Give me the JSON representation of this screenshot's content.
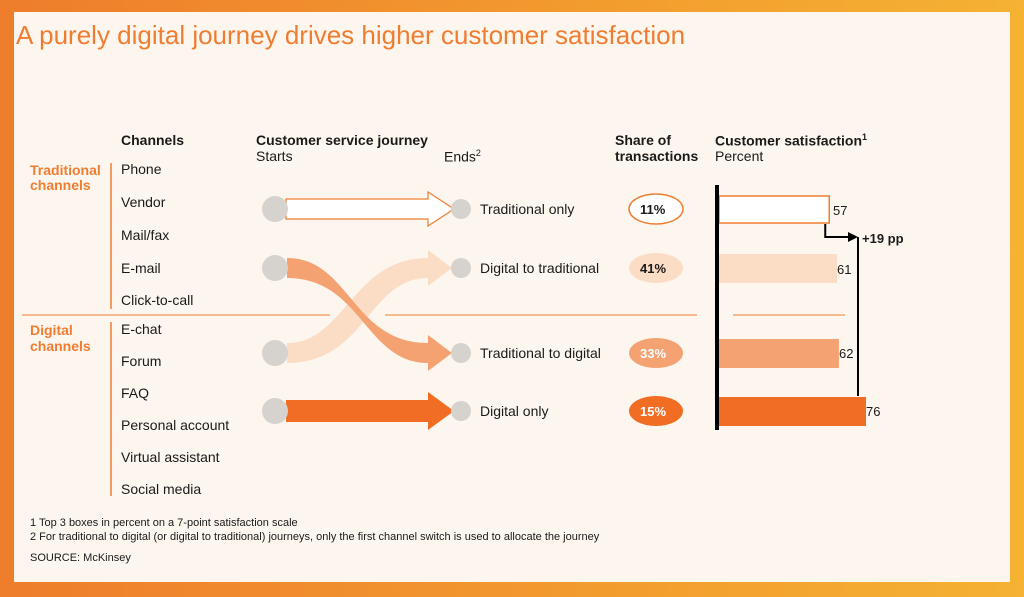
{
  "title": "A purely digital journey drives higher customer satisfaction",
  "headers": {
    "channels": "Channels",
    "journey": "Customer service journey",
    "starts": "Starts",
    "ends": "Ends",
    "ends_sup": "2",
    "share_line1": "Share of",
    "share_line2": "transactions",
    "satisfaction": "Customer satisfaction",
    "satisfaction_sup": "1",
    "percent": "Percent"
  },
  "groups": {
    "traditional_line1": "Traditional",
    "traditional_line2": "channels",
    "digital_line1": "Digital",
    "digital_line2": "channels"
  },
  "channels": {
    "traditional": [
      "Phone",
      "Vendor",
      "Mail/fax",
      "E-mail",
      "Click-to-call"
    ],
    "digital": [
      "E-chat",
      "Forum",
      "FAQ",
      "Personal account",
      "Virtual assistant",
      "Social media"
    ]
  },
  "annotation": "+19 pp",
  "colors": {
    "accent": "#ef7d31",
    "traditional_only": "#ffffff",
    "digital_to_traditional": "#fbdcc5",
    "traditional_to_digital": "#f4a271",
    "digital_only": "#f26d24",
    "start_circle": "#d6d2cd",
    "axis": "#000000"
  },
  "chart_data": {
    "type": "bar",
    "orientation": "horizontal",
    "categories": [
      "Traditional only",
      "Digital to traditional",
      "Traditional to digital",
      "Digital only"
    ],
    "share_of_transactions": [
      "11%",
      "41%",
      "33%",
      "15%"
    ],
    "series": [
      {
        "values": [
          57,
          61,
          62,
          76
        ]
      }
    ],
    "xlim": [
      0,
      80
    ],
    "grid": false,
    "legend": "none"
  },
  "footnotes": [
    "1 Top 3 boxes in percent on a 7-point satisfaction scale",
    "2 For traditional to digital (or digital to traditional) journeys, only the first channel switch is used to allocate the journey"
  ],
  "source": "SOURCE: McKinsey"
}
